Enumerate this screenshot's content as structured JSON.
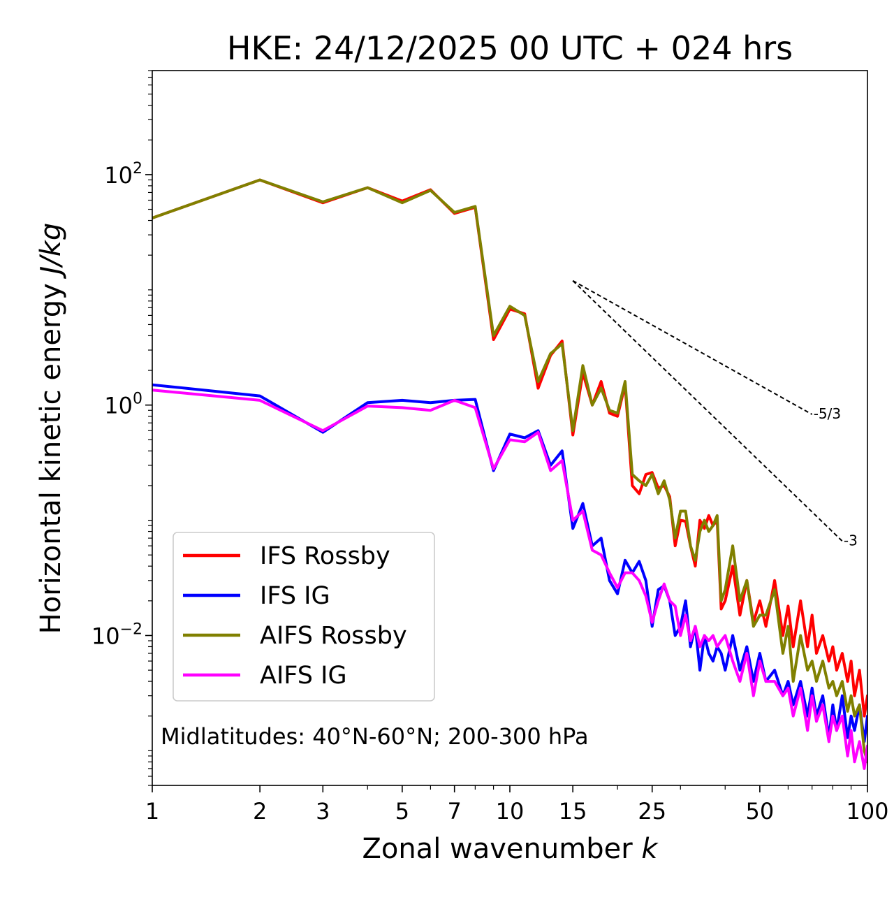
{
  "chart_data": {
    "type": "line",
    "title": "HKE: 24/12/2025 00 UTC + 024 hrs",
    "xlabel_main": "Zonal wavenumber ",
    "xlabel_var": "k",
    "ylabel_main": "Horizontal kinetic energy ",
    "ylabel_var": "J/kg",
    "xscale": "log",
    "yscale": "log",
    "xlim": [
      1,
      100
    ],
    "ylim": [
      0.0005,
      800
    ],
    "x_ticks": [
      {
        "value": 1,
        "label": "1"
      },
      {
        "value": 2,
        "label": "2"
      },
      {
        "value": 3,
        "label": "3"
      },
      {
        "value": 5,
        "label": "5"
      },
      {
        "value": 7,
        "label": "7"
      },
      {
        "value": 10,
        "label": "10"
      },
      {
        "value": 15,
        "label": "15"
      },
      {
        "value": 25,
        "label": "25"
      },
      {
        "value": 50,
        "label": "50"
      },
      {
        "value": 100,
        "label": "100"
      }
    ],
    "y_ticks": [
      {
        "value": 100,
        "base": "10",
        "exp": "2"
      },
      {
        "value": 1,
        "base": "10",
        "exp": "0"
      },
      {
        "value": 0.01,
        "base": "10",
        "exp": "−2"
      }
    ],
    "annotation": "Midlatitudes: 40°N-60°N; 200-300 hPa",
    "legend_position": "lower-left",
    "reference_lines": [
      {
        "label": "-5/3",
        "x": [
          15,
          70
        ],
        "y": [
          12,
          0.83
        ]
      },
      {
        "label": "-3",
        "x": [
          15,
          85
        ],
        "y": [
          12,
          0.066
        ]
      }
    ],
    "series": [
      {
        "name": "IFS Rossby",
        "color": "#ff0000",
        "x": [
          1,
          2,
          3,
          4,
          5,
          6,
          7,
          8,
          9,
          10,
          11,
          12,
          13,
          14,
          15,
          16,
          17,
          18,
          19,
          20,
          21,
          22,
          23,
          24,
          25,
          26,
          27,
          28,
          29,
          30,
          31,
          32,
          33,
          34,
          35,
          36,
          37,
          38,
          39,
          40,
          42,
          44,
          46,
          48,
          50,
          52,
          55,
          58,
          60,
          62,
          65,
          68,
          70,
          72,
          75,
          78,
          80,
          82,
          85,
          88,
          90,
          92,
          95,
          98,
          100
        ],
        "y": [
          42,
          90,
          57,
          77,
          59,
          74,
          46,
          52,
          3.7,
          6.8,
          6.2,
          1.4,
          2.7,
          3.6,
          0.55,
          1.9,
          1.0,
          1.6,
          0.85,
          0.8,
          1.5,
          0.2,
          0.17,
          0.25,
          0.26,
          0.19,
          0.2,
          0.16,
          0.06,
          0.1,
          0.098,
          0.06,
          0.04,
          0.1,
          0.085,
          0.11,
          0.09,
          0.1,
          0.017,
          0.02,
          0.04,
          0.015,
          0.03,
          0.013,
          0.02,
          0.012,
          0.03,
          0.01,
          0.018,
          0.008,
          0.02,
          0.008,
          0.015,
          0.007,
          0.01,
          0.006,
          0.008,
          0.005,
          0.007,
          0.004,
          0.006,
          0.003,
          0.005,
          0.002,
          0.003
        ]
      },
      {
        "name": "IFS IG",
        "color": "#0000ff",
        "x": [
          1,
          2,
          3,
          4,
          5,
          6,
          7,
          8,
          9,
          10,
          11,
          12,
          13,
          14,
          15,
          16,
          17,
          18,
          19,
          20,
          21,
          22,
          23,
          24,
          25,
          26,
          27,
          28,
          29,
          30,
          31,
          32,
          33,
          34,
          35,
          36,
          37,
          38,
          39,
          40,
          42,
          44,
          46,
          48,
          50,
          52,
          55,
          58,
          60,
          62,
          65,
          68,
          70,
          72,
          75,
          78,
          80,
          82,
          85,
          88,
          90,
          92,
          95,
          98,
          100
        ],
        "y": [
          1.5,
          1.2,
          0.58,
          1.05,
          1.1,
          1.05,
          1.1,
          1.12,
          0.27,
          0.56,
          0.52,
          0.6,
          0.3,
          0.4,
          0.085,
          0.14,
          0.06,
          0.07,
          0.03,
          0.023,
          0.045,
          0.035,
          0.044,
          0.03,
          0.012,
          0.025,
          0.027,
          0.02,
          0.01,
          0.012,
          0.02,
          0.008,
          0.012,
          0.005,
          0.01,
          0.007,
          0.006,
          0.008,
          0.007,
          0.005,
          0.01,
          0.005,
          0.008,
          0.004,
          0.007,
          0.004,
          0.005,
          0.003,
          0.004,
          0.0025,
          0.004,
          0.002,
          0.0035,
          0.002,
          0.003,
          0.0013,
          0.0025,
          0.0015,
          0.003,
          0.0013,
          0.002,
          0.0015,
          0.0025,
          0.0012,
          0.002
        ]
      },
      {
        "name": "AIFS Rossby",
        "color": "#808000",
        "x": [
          1,
          2,
          3,
          4,
          5,
          6,
          7,
          8,
          9,
          10,
          11,
          12,
          13,
          14,
          15,
          16,
          17,
          18,
          19,
          20,
          21,
          22,
          23,
          24,
          25,
          26,
          27,
          28,
          29,
          30,
          31,
          32,
          33,
          34,
          35,
          36,
          37,
          38,
          39,
          40,
          42,
          44,
          46,
          48,
          50,
          52,
          55,
          58,
          60,
          62,
          65,
          68,
          70,
          72,
          75,
          78,
          80,
          82,
          85,
          88,
          90,
          92,
          95,
          98,
          100
        ],
        "y": [
          42,
          90,
          58,
          77,
          57,
          73,
          47,
          53,
          4.0,
          7.2,
          6.0,
          1.6,
          2.8,
          3.4,
          0.6,
          2.2,
          1.0,
          1.4,
          0.9,
          0.85,
          1.6,
          0.25,
          0.22,
          0.2,
          0.25,
          0.17,
          0.22,
          0.15,
          0.07,
          0.12,
          0.12,
          0.06,
          0.045,
          0.08,
          0.1,
          0.08,
          0.09,
          0.11,
          0.02,
          0.025,
          0.06,
          0.02,
          0.03,
          0.012,
          0.015,
          0.015,
          0.025,
          0.007,
          0.012,
          0.004,
          0.01,
          0.005,
          0.006,
          0.004,
          0.006,
          0.0035,
          0.004,
          0.003,
          0.004,
          0.0022,
          0.003,
          0.002,
          0.0025,
          0.001,
          0.0008
        ]
      },
      {
        "name": "AIFS IG",
        "color": "#ff00ff",
        "x": [
          1,
          2,
          3,
          4,
          5,
          6,
          7,
          8,
          9,
          10,
          11,
          12,
          13,
          14,
          15,
          16,
          17,
          18,
          19,
          20,
          21,
          22,
          23,
          24,
          25,
          26,
          27,
          28,
          29,
          30,
          31,
          32,
          33,
          34,
          35,
          36,
          37,
          38,
          39,
          40,
          42,
          44,
          46,
          48,
          50,
          52,
          55,
          58,
          60,
          62,
          65,
          68,
          70,
          72,
          75,
          78,
          80,
          82,
          85,
          88,
          90,
          92,
          95,
          98,
          100
        ],
        "y": [
          1.35,
          1.1,
          0.6,
          0.98,
          0.95,
          0.9,
          1.1,
          0.95,
          0.28,
          0.5,
          0.48,
          0.58,
          0.27,
          0.33,
          0.1,
          0.12,
          0.055,
          0.05,
          0.035,
          0.026,
          0.035,
          0.035,
          0.03,
          0.022,
          0.013,
          0.02,
          0.028,
          0.02,
          0.018,
          0.01,
          0.015,
          0.009,
          0.012,
          0.008,
          0.01,
          0.009,
          0.01,
          0.008,
          0.009,
          0.01,
          0.006,
          0.004,
          0.007,
          0.003,
          0.006,
          0.004,
          0.004,
          0.003,
          0.0035,
          0.002,
          0.0035,
          0.0015,
          0.003,
          0.0018,
          0.0025,
          0.0012,
          0.002,
          0.0015,
          0.002,
          0.0009,
          0.0015,
          0.0008,
          0.0012,
          0.0007,
          0.0011
        ]
      }
    ]
  }
}
